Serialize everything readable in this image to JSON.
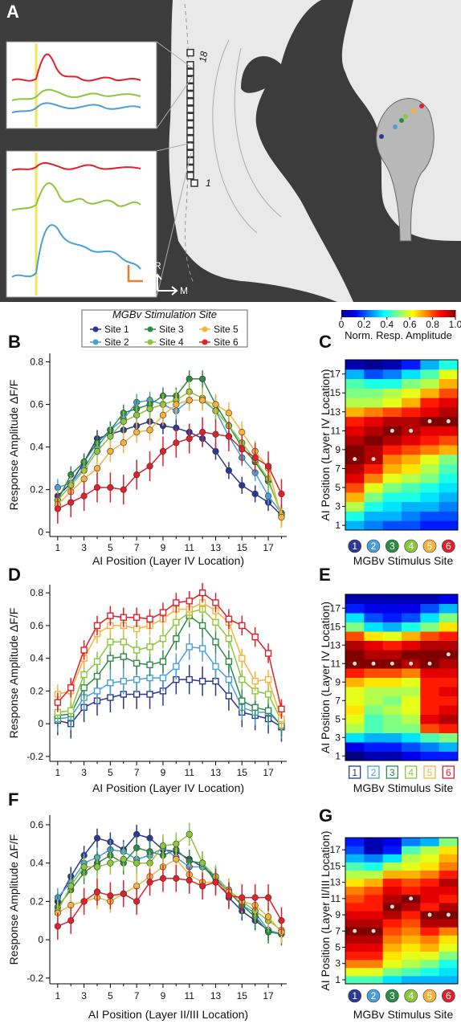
{
  "panel_a": {
    "label": "A",
    "electrode_top": "18",
    "electrode_bottom": "1",
    "axis_rostral": "R",
    "axis_medial": "M"
  },
  "chart_data": [
    {
      "type": "line",
      "label": "B",
      "marker": "circle",
      "legend_title": "MGBv Stimulation Site",
      "ylabel": "Response Amplitude ΔF/F",
      "xlabel": "AI Position (Layer IV Location)",
      "x": [
        1,
        2,
        3,
        4,
        5,
        6,
        7,
        8,
        9,
        10,
        11,
        12,
        13,
        14,
        15,
        16,
        17,
        18
      ],
      "xlim": [
        0.4,
        18.4
      ],
      "xticks": [
        1,
        3,
        5,
        7,
        9,
        11,
        13,
        15,
        17
      ],
      "ylim": [
        -0.02,
        0.84
      ],
      "yticks": [
        0,
        0.2,
        0.4,
        0.6,
        0.8
      ],
      "series": [
        {
          "name": "Site 1",
          "color": "#2b3990",
          "error": 0.04,
          "values": [
            0.17,
            0.23,
            0.33,
            0.44,
            0.46,
            0.48,
            0.5,
            0.52,
            0.5,
            0.49,
            0.47,
            0.44,
            0.38,
            0.29,
            0.22,
            0.18,
            0.14,
            0.08
          ]
        },
        {
          "name": "Site 2",
          "color": "#4a9fd8",
          "error": 0.04,
          "values": [
            0.21,
            0.23,
            0.3,
            0.4,
            0.48,
            0.53,
            0.61,
            0.62,
            0.6,
            0.57,
            0.62,
            0.62,
            0.57,
            0.45,
            0.35,
            0.28,
            0.17,
            0.09
          ]
        },
        {
          "name": "Site 3",
          "color": "#2e8b47",
          "error": 0.04,
          "values": [
            0.15,
            0.27,
            0.33,
            0.42,
            0.48,
            0.56,
            0.58,
            0.6,
            0.64,
            0.64,
            0.72,
            0.72,
            0.6,
            0.5,
            0.4,
            0.33,
            0.24,
            0.09
          ]
        },
        {
          "name": "Site 4",
          "color": "#8cc63f",
          "error": 0.05,
          "values": [
            0.15,
            0.22,
            0.29,
            0.38,
            0.45,
            0.52,
            0.55,
            0.58,
            0.6,
            0.62,
            0.66,
            0.63,
            0.57,
            0.5,
            0.42,
            0.34,
            0.25,
            0.08
          ]
        },
        {
          "name": "Site 5",
          "color": "#f7b23b",
          "error": 0.05,
          "values": [
            0.13,
            0.19,
            0.25,
            0.3,
            0.38,
            0.42,
            0.47,
            0.48,
            0.55,
            0.6,
            0.62,
            0.62,
            0.6,
            0.56,
            0.47,
            0.38,
            0.3,
            0.07
          ]
        },
        {
          "name": "Site 6",
          "color": "#e0202b",
          "error": 0.07,
          "values": [
            0.11,
            0.14,
            0.17,
            0.21,
            0.21,
            0.2,
            0.27,
            0.31,
            0.38,
            0.42,
            0.44,
            0.47,
            0.46,
            0.45,
            0.39,
            0.35,
            0.31,
            0.18
          ]
        }
      ]
    },
    {
      "type": "heatmap",
      "label": "C",
      "category_marker": "circle",
      "ylabel": "AI Position (Layer IV Location)",
      "xlabel": "MGBv Stimulus Site",
      "x": [
        "1",
        "2",
        "3",
        "4",
        "5",
        "6"
      ],
      "category_colors": [
        "#2b3990",
        "#4a9fd8",
        "#2e8b47",
        "#8cc63f",
        "#f7b23b",
        "#e0202b"
      ],
      "y": [
        1,
        2,
        3,
        4,
        5,
        6,
        7,
        8,
        9,
        10,
        11,
        12,
        13,
        14,
        15,
        16,
        17,
        18
      ],
      "ylim": [
        0.5,
        18.5
      ],
      "yticks": [
        1,
        3,
        5,
        7,
        9,
        11,
        13,
        15,
        17
      ],
      "colorbar": {
        "label": "Norm. Resp. Amplitude",
        "lim": [
          0,
          1
        ],
        "ticks": [
          0,
          0.2,
          0.4,
          0.6,
          0.8,
          {
            "value": 1,
            "label": "1.0"
          }
        ]
      },
      "peak_rows": [
        8,
        8,
        11,
        11,
        12,
        12
      ],
      "z": [
        [
          0.3,
          0.25,
          0.2,
          0.2,
          0.15,
          0.15
        ],
        [
          0.4,
          0.3,
          0.3,
          0.25,
          0.2,
          0.2
        ],
        [
          0.55,
          0.4,
          0.35,
          0.3,
          0.3,
          0.25
        ],
        [
          0.7,
          0.5,
          0.4,
          0.4,
          0.35,
          0.3
        ],
        [
          0.8,
          0.6,
          0.5,
          0.45,
          0.4,
          0.35
        ],
        [
          0.9,
          0.75,
          0.6,
          0.55,
          0.5,
          0.4
        ],
        [
          0.95,
          0.85,
          0.7,
          0.65,
          0.55,
          0.45
        ],
        [
          1,
          0.95,
          0.75,
          0.7,
          0.6,
          0.5
        ],
        [
          1,
          0.95,
          0.85,
          0.8,
          0.75,
          0.7
        ],
        [
          0.95,
          1,
          0.95,
          0.9,
          0.85,
          0.8
        ],
        [
          0.9,
          0.95,
          1,
          0.95,
          0.9,
          0.9
        ],
        [
          0.85,
          0.9,
          0.95,
          0.95,
          1,
          1
        ],
        [
          0.7,
          0.75,
          0.8,
          0.85,
          0.9,
          0.95
        ],
        [
          0.55,
          0.55,
          0.6,
          0.7,
          0.85,
          0.9
        ],
        [
          0.5,
          0.5,
          0.55,
          0.6,
          0.7,
          0.8
        ],
        [
          0.45,
          0.4,
          0.4,
          0.5,
          0.55,
          0.7
        ],
        [
          0.3,
          0.2,
          0.25,
          0.35,
          0.45,
          0.6
        ],
        [
          0.05,
          0.02,
          0.05,
          0.15,
          0.3,
          0.4
        ]
      ]
    },
    {
      "type": "line",
      "label": "D",
      "marker": "square",
      "ylabel": "Response Amplitude ΔF/F",
      "xlabel": "AI Position (Layer IV Location)",
      "x": [
        1,
        2,
        3,
        4,
        5,
        6,
        7,
        8,
        9,
        10,
        11,
        12,
        13,
        14,
        15,
        16,
        17,
        18
      ],
      "xlim": [
        0.4,
        18.4
      ],
      "xticks": [
        1,
        3,
        5,
        7,
        9,
        11,
        13,
        15,
        17
      ],
      "ylim": [
        -0.23,
        0.85
      ],
      "yticks": [
        -0.2,
        0,
        0.2,
        0.4,
        0.6,
        0.8
      ],
      "series": [
        {
          "color": "#2b3990",
          "error": 0.09,
          "values": [
            0.02,
            0.0,
            0.1,
            0.14,
            0.16,
            0.18,
            0.18,
            0.18,
            0.2,
            0.27,
            0.27,
            0.26,
            0.26,
            0.17,
            0.07,
            0.05,
            0.03,
            -0.02
          ]
        },
        {
          "color": "#4a9fd8",
          "error": 0.08,
          "values": [
            0.03,
            0.04,
            0.16,
            0.2,
            0.25,
            0.26,
            0.27,
            0.28,
            0.28,
            0.35,
            0.47,
            0.46,
            0.35,
            0.27,
            0.1,
            0.07,
            0.07,
            -0.01
          ]
        },
        {
          "color": "#2e8b47",
          "error": 0.07,
          "values": [
            0.05,
            0.06,
            0.22,
            0.29,
            0.4,
            0.41,
            0.37,
            0.36,
            0.38,
            0.52,
            0.66,
            0.6,
            0.5,
            0.38,
            0.14,
            0.1,
            0.08,
            -0.01
          ]
        },
        {
          "color": "#8cc63f",
          "error": 0.06,
          "values": [
            0.07,
            0.08,
            0.3,
            0.38,
            0.5,
            0.5,
            0.45,
            0.47,
            0.52,
            0.62,
            0.68,
            0.7,
            0.62,
            0.52,
            0.27,
            0.2,
            0.18,
            0.02
          ]
        },
        {
          "color": "#f7b23b",
          "error": 0.06,
          "values": [
            0.18,
            0.2,
            0.4,
            0.55,
            0.6,
            0.6,
            0.58,
            0.6,
            0.64,
            0.7,
            0.7,
            0.74,
            0.69,
            0.62,
            0.4,
            0.26,
            0.27,
            0.03
          ]
        },
        {
          "color": "#e0202b",
          "error": 0.06,
          "values": [
            0.13,
            0.22,
            0.45,
            0.6,
            0.66,
            0.65,
            0.65,
            0.64,
            0.68,
            0.74,
            0.75,
            0.8,
            0.74,
            0.64,
            0.6,
            0.53,
            0.43,
            0.09
          ]
        }
      ]
    },
    {
      "type": "heatmap",
      "label": "E",
      "category_marker": "square",
      "ylabel": "AI Position (Layer IV Location)",
      "xlabel": "MGBv Stimulus Site",
      "x": [
        "1",
        "2",
        "3",
        "4",
        "5",
        "6"
      ],
      "category_colors": [
        "#2b3990",
        "#4a9fd8",
        "#2e8b47",
        "#8cc63f",
        "#f7b23b",
        "#e0202b"
      ],
      "y": [
        1,
        2,
        3,
        4,
        5,
        6,
        7,
        8,
        9,
        10,
        11,
        12,
        13,
        14,
        15,
        16,
        17,
        18
      ],
      "ylim": [
        0.5,
        18.5
      ],
      "yticks": [
        1,
        3,
        5,
        7,
        9,
        11,
        13,
        15,
        17
      ],
      "peak_rows": [
        11,
        11,
        11,
        11,
        11,
        12
      ],
      "z": [
        [
          0,
          0.05,
          0.05,
          0.1,
          0.15,
          0.15
        ],
        [
          0.1,
          0.15,
          0.15,
          0.2,
          0.25,
          0.3
        ],
        [
          0.35,
          0.3,
          0.3,
          0.35,
          0.45,
          0.5
        ],
        [
          0.55,
          0.45,
          0.5,
          0.5,
          0.8,
          0.85
        ],
        [
          0.6,
          0.45,
          0.5,
          0.55,
          0.9,
          0.95
        ],
        [
          0.65,
          0.5,
          0.55,
          0.6,
          0.85,
          0.9
        ],
        [
          0.6,
          0.55,
          0.5,
          0.6,
          0.85,
          0.85
        ],
        [
          0.6,
          0.55,
          0.55,
          0.55,
          0.85,
          0.9
        ],
        [
          0.7,
          0.65,
          0.65,
          0.6,
          0.85,
          0.85
        ],
        [
          0.85,
          0.8,
          0.8,
          0.75,
          0.9,
          0.9
        ],
        [
          1,
          1,
          1,
          0.95,
          1,
          0.95
        ],
        [
          1,
          0.95,
          0.95,
          1,
          1,
          1
        ],
        [
          0.95,
          0.9,
          0.85,
          0.9,
          0.95,
          0.95
        ],
        [
          0.8,
          0.65,
          0.6,
          0.7,
          0.8,
          0.85
        ],
        [
          0.5,
          0.35,
          0.3,
          0.4,
          0.5,
          0.65
        ],
        [
          0.35,
          0.2,
          0.15,
          0.2,
          0.35,
          0.5
        ],
        [
          0.15,
          0.1,
          0.1,
          0.1,
          0.2,
          0.3
        ],
        [
          0.05,
          0.05,
          0.05,
          0.05,
          0.05,
          0.1
        ]
      ]
    },
    {
      "type": "line",
      "label": "F",
      "marker": "circle",
      "ylabel": "Response Amplitude ΔF/F",
      "xlabel": "AI Position (Layer II/III Location)",
      "x": [
        1,
        2,
        3,
        4,
        5,
        6,
        7,
        8,
        9,
        10,
        11,
        12,
        13,
        14,
        15,
        16,
        17,
        18
      ],
      "xlim": [
        0.4,
        18.4
      ],
      "xticks": [
        1,
        3,
        5,
        7,
        9,
        11,
        13,
        15,
        17
      ],
      "ylim": [
        -0.23,
        0.65
      ],
      "yticks": [
        -0.2,
        0,
        0.2,
        0.4,
        0.6
      ],
      "series": [
        {
          "color": "#2b3990",
          "error": 0.05,
          "values": [
            0.2,
            0.33,
            0.44,
            0.53,
            0.51,
            0.47,
            0.55,
            0.53,
            0.47,
            0.46,
            0.42,
            0.38,
            0.33,
            0.22,
            0.15,
            0.1,
            0.05,
            0.03
          ]
        },
        {
          "color": "#4a9fd8",
          "error": 0.05,
          "values": [
            0.22,
            0.3,
            0.4,
            0.43,
            0.47,
            0.46,
            0.42,
            0.44,
            0.48,
            0.43,
            0.38,
            0.38,
            0.32,
            0.25,
            0.18,
            0.14,
            0.05,
            0.03
          ]
        },
        {
          "color": "#2e8b47",
          "error": 0.06,
          "values": [
            0.17,
            0.26,
            0.35,
            0.4,
            0.44,
            0.4,
            0.48,
            0.46,
            0.44,
            0.47,
            0.41,
            0.4,
            0.3,
            0.25,
            0.18,
            0.12,
            0.04,
            0.03
          ]
        },
        {
          "color": "#8cc63f",
          "error": 0.06,
          "values": [
            0.15,
            0.28,
            0.38,
            0.38,
            0.4,
            0.42,
            0.4,
            0.4,
            0.49,
            0.5,
            0.55,
            0.4,
            0.33,
            0.26,
            0.2,
            0.15,
            0.1,
            0.05
          ]
        },
        {
          "color": "#f7b23b",
          "error": 0.06,
          "values": [
            0.14,
            0.18,
            0.2,
            0.22,
            0.2,
            0.24,
            0.28,
            0.33,
            0.38,
            0.42,
            0.34,
            0.3,
            0.3,
            0.25,
            0.2,
            0.18,
            0.12,
            0.04
          ]
        },
        {
          "color": "#e0202b",
          "error": 0.07,
          "values": [
            0.07,
            0.1,
            0.2,
            0.25,
            0.23,
            0.24,
            0.2,
            0.3,
            0.32,
            0.32,
            0.31,
            0.28,
            0.3,
            0.23,
            0.22,
            0.22,
            0.22,
            0.1
          ]
        }
      ]
    },
    {
      "type": "heatmap",
      "label": "G",
      "category_marker": "circle",
      "ylabel": "AI Position (Layer II/III Location)",
      "xlabel": "MGBv Stimulus Site",
      "x": [
        "1",
        "2",
        "3",
        "4",
        "5",
        "6"
      ],
      "category_colors": [
        "#2b3990",
        "#4a9fd8",
        "#2e8b47",
        "#8cc63f",
        "#f7b23b",
        "#e0202b"
      ],
      "y": [
        1,
        2,
        3,
        4,
        5,
        6,
        7,
        8,
        9,
        10,
        11,
        12,
        13,
        14,
        15,
        16,
        17,
        18
      ],
      "ylim": [
        0.5,
        18.5
      ],
      "yticks": [
        1,
        3,
        5,
        7,
        9,
        11,
        13,
        15,
        17
      ],
      "peak_rows": [
        7,
        7,
        10,
        11,
        9,
        9
      ],
      "z": [
        [
          0.45,
          0.45,
          0.35,
          0.3,
          0.3,
          0.3
        ],
        [
          0.6,
          0.6,
          0.5,
          0.45,
          0.4,
          0.35
        ],
        [
          0.75,
          0.75,
          0.6,
          0.55,
          0.5,
          0.4
        ],
        [
          0.85,
          0.85,
          0.65,
          0.6,
          0.6,
          0.5
        ],
        [
          0.9,
          0.9,
          0.7,
          0.65,
          0.7,
          0.6
        ],
        [
          0.95,
          0.95,
          0.75,
          0.7,
          0.75,
          0.65
        ],
        [
          1,
          1,
          0.8,
          0.75,
          0.85,
          0.75
        ],
        [
          0.95,
          0.95,
          0.85,
          0.8,
          0.95,
          0.95
        ],
        [
          0.9,
          0.9,
          0.95,
          0.85,
          1,
          1
        ],
        [
          0.85,
          0.85,
          1,
          0.95,
          0.85,
          0.95
        ],
        [
          0.8,
          0.85,
          0.95,
          1,
          0.9,
          0.85
        ],
        [
          0.75,
          0.8,
          0.9,
          0.85,
          0.9,
          0.9
        ],
        [
          0.65,
          0.7,
          0.85,
          0.8,
          0.85,
          0.95
        ],
        [
          0.55,
          0.55,
          0.7,
          0.7,
          0.75,
          0.85
        ],
        [
          0.45,
          0.4,
          0.55,
          0.6,
          0.65,
          0.75
        ],
        [
          0.3,
          0.25,
          0.35,
          0.55,
          0.6,
          0.7
        ],
        [
          0.2,
          0.05,
          0.15,
          0.45,
          0.55,
          0.65
        ],
        [
          0.15,
          0.05,
          0.1,
          0.25,
          0.3,
          0.5
        ]
      ]
    }
  ]
}
